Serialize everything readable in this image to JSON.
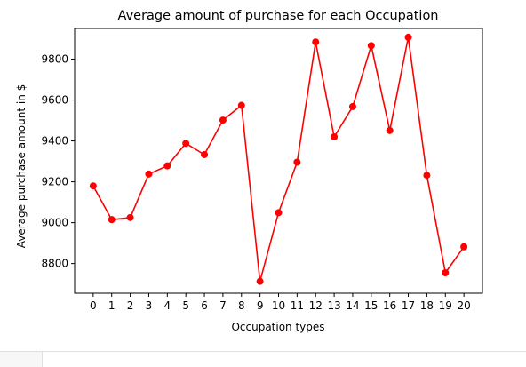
{
  "chart_data": {
    "type": "line",
    "title": "Average amount of purchase for each Occupation",
    "xlabel": "Occupation types",
    "ylabel": "Average purchase amount in $",
    "x": [
      0,
      1,
      2,
      3,
      4,
      5,
      6,
      7,
      8,
      9,
      10,
      11,
      12,
      13,
      14,
      15,
      16,
      17,
      18,
      19,
      20
    ],
    "series": [
      {
        "values": [
          9180,
          9015,
          9025,
          9238,
          9278,
          9388,
          9333,
          9502,
          9574,
          8713,
          9049,
          9296,
          9884,
          9420,
          9568,
          9866,
          9451,
          9907,
          9232,
          8755,
          8882
        ],
        "color": "#ff0000",
        "marker": "circle"
      }
    ],
    "xticks": [
      "0",
      "1",
      "2",
      "3",
      "4",
      "5",
      "6",
      "7",
      "8",
      "9",
      "10",
      "11",
      "12",
      "13",
      "14",
      "15",
      "16",
      "17",
      "18",
      "19",
      "20"
    ],
    "yticks": [
      "8800",
      "9000",
      "9200",
      "9400",
      "9600",
      "9800"
    ],
    "ytick_values": [
      8800,
      9000,
      9200,
      9400,
      9600,
      9800
    ],
    "xlim": [
      -1,
      21
    ],
    "ylim": [
      8655,
      9950
    ],
    "grid": false,
    "legend": "none"
  }
}
